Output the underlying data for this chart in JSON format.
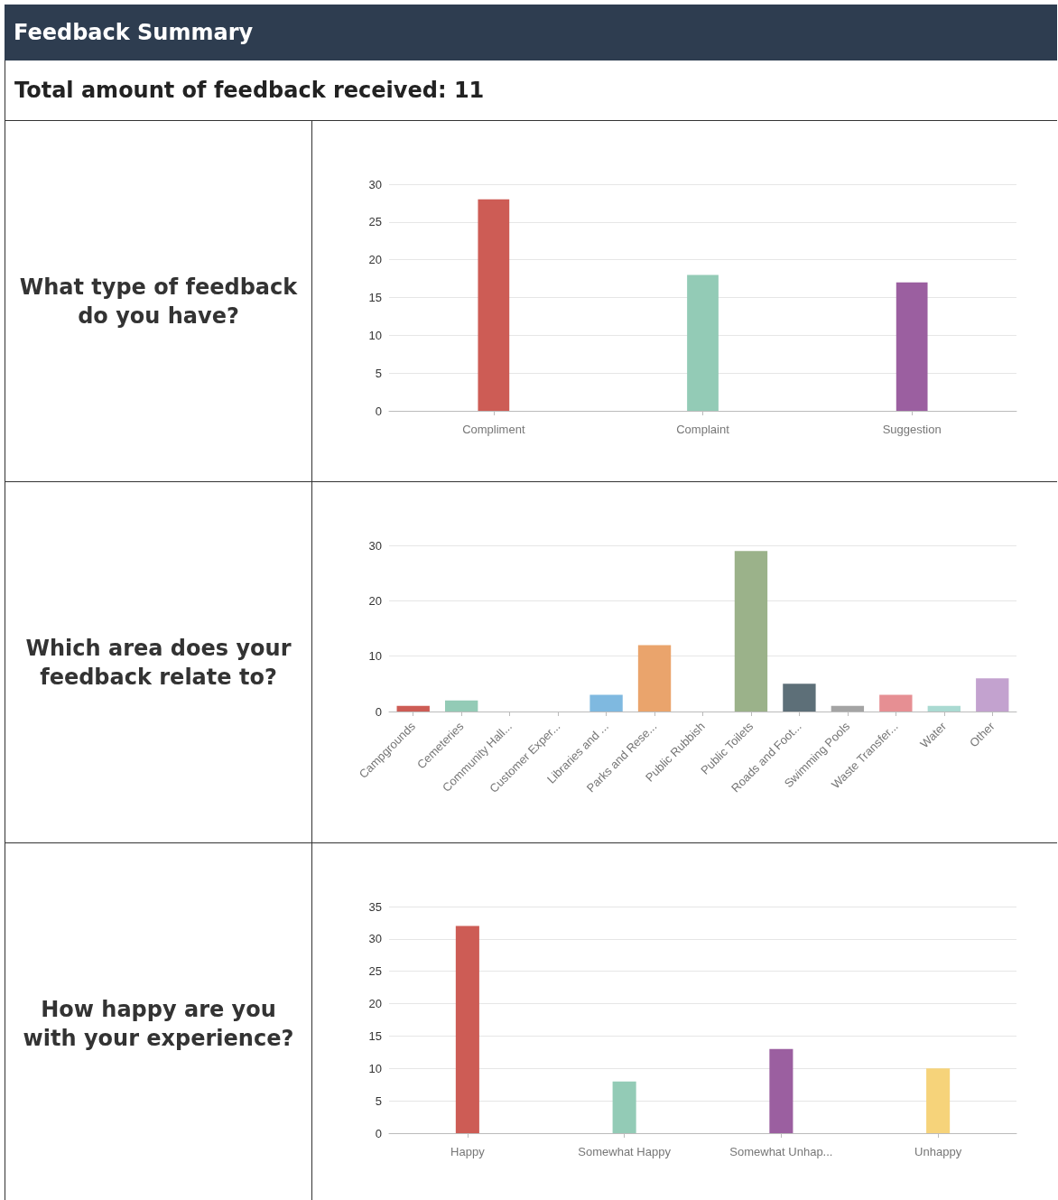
{
  "chart_data": [
    {
      "type": "other",
      "title": "Feedback Summary",
      "subtitle": "Total amount of feedback received: 11"
    },
    {
      "type": "bar",
      "title": "What type of feedback do you have?",
      "categories": [
        "Compliment",
        "Complaint",
        "Suggestion"
      ],
      "values": [
        28,
        18,
        17
      ],
      "colors": [
        "#cd5c55",
        "#93cbb6",
        "#9b5fa0"
      ],
      "ylim": [
        0,
        30
      ],
      "yticks": [
        0,
        5,
        10,
        15,
        20,
        25,
        30
      ],
      "grid": "y"
    },
    {
      "type": "bar",
      "title": "Which area does your feedback relate to?",
      "categories": [
        "Campgrounds",
        "Cemeteries",
        "Community Hall...",
        "Customer Exper...",
        "Libraries and ...",
        "Parks and Rese...",
        "Public Rubbish",
        "Public Toilets",
        "Roads and Foot...",
        "Swimming Pools",
        "Waste Transfer...",
        "Water",
        "Other"
      ],
      "values": [
        1,
        2,
        0,
        0,
        3,
        12,
        0,
        29,
        5,
        1,
        3,
        1,
        6
      ],
      "colors": [
        "#cd5c55",
        "#93cbb6",
        "#9b5fa0",
        "#f6d37a",
        "#7fb9e0",
        "#eaa46c",
        "#8c8c8c",
        "#9bb28a",
        "#5d6f78",
        "#a4a4a4",
        "#e68f93",
        "#aadad2",
        "#c3a2cf"
      ],
      "ylim": [
        0,
        30
      ],
      "yticks": [
        0,
        10,
        20,
        30
      ],
      "grid": "y"
    },
    {
      "type": "bar",
      "title": "How happy are you with your experience?",
      "categories": [
        "Happy",
        "Somewhat Happy",
        "Somewhat Unhap...",
        "Unhappy"
      ],
      "values": [
        32,
        8,
        13,
        10
      ],
      "colors": [
        "#cd5c55",
        "#93cbb6",
        "#9b5fa0",
        "#f6d37a"
      ],
      "ylim": [
        0,
        35
      ],
      "yticks": [
        0,
        5,
        10,
        15,
        20,
        25,
        30,
        35
      ],
      "grid": "y"
    }
  ]
}
